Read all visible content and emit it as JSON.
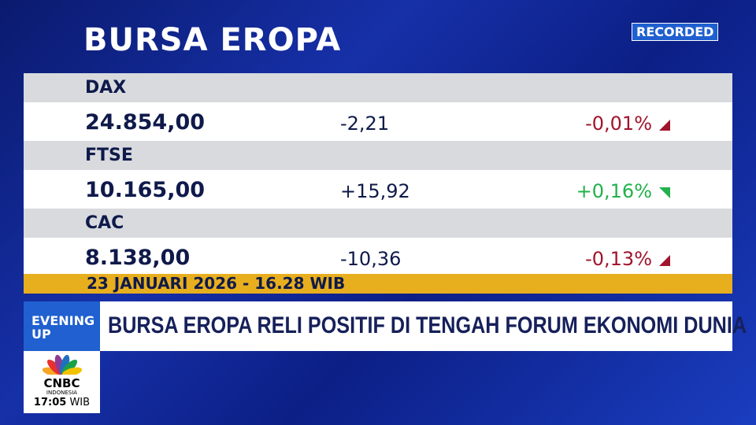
{
  "header": {
    "title": "BURSA EROPA",
    "badge": "RECORDED"
  },
  "table": {
    "rows": [
      {
        "name": "DAX",
        "value": "24.854,00",
        "change": "-2,21",
        "percent": "-0,01%",
        "color": "#a0142c"
      },
      {
        "name": "FTSE",
        "value": "10.165,00",
        "change": "+15,92",
        "percent": "+0,16%",
        "color": "#22b14c"
      },
      {
        "name": "CAC",
        "value": "8.138,00",
        "change": "-10,36",
        "percent": "-0,13%",
        "color": "#a0142c"
      }
    ],
    "date": "23 JANUARI 2026 - 16.28 WIB"
  },
  "ticker": {
    "label": "EVENING UP",
    "headline": "BURSA EROPA RELI POSITIF DI TENGAH FORUM EKONOMI DUNIA"
  },
  "logo": {
    "brand": "CNBC",
    "region": "INDONESIA",
    "time": "17:05",
    "zone": "WIB"
  }
}
